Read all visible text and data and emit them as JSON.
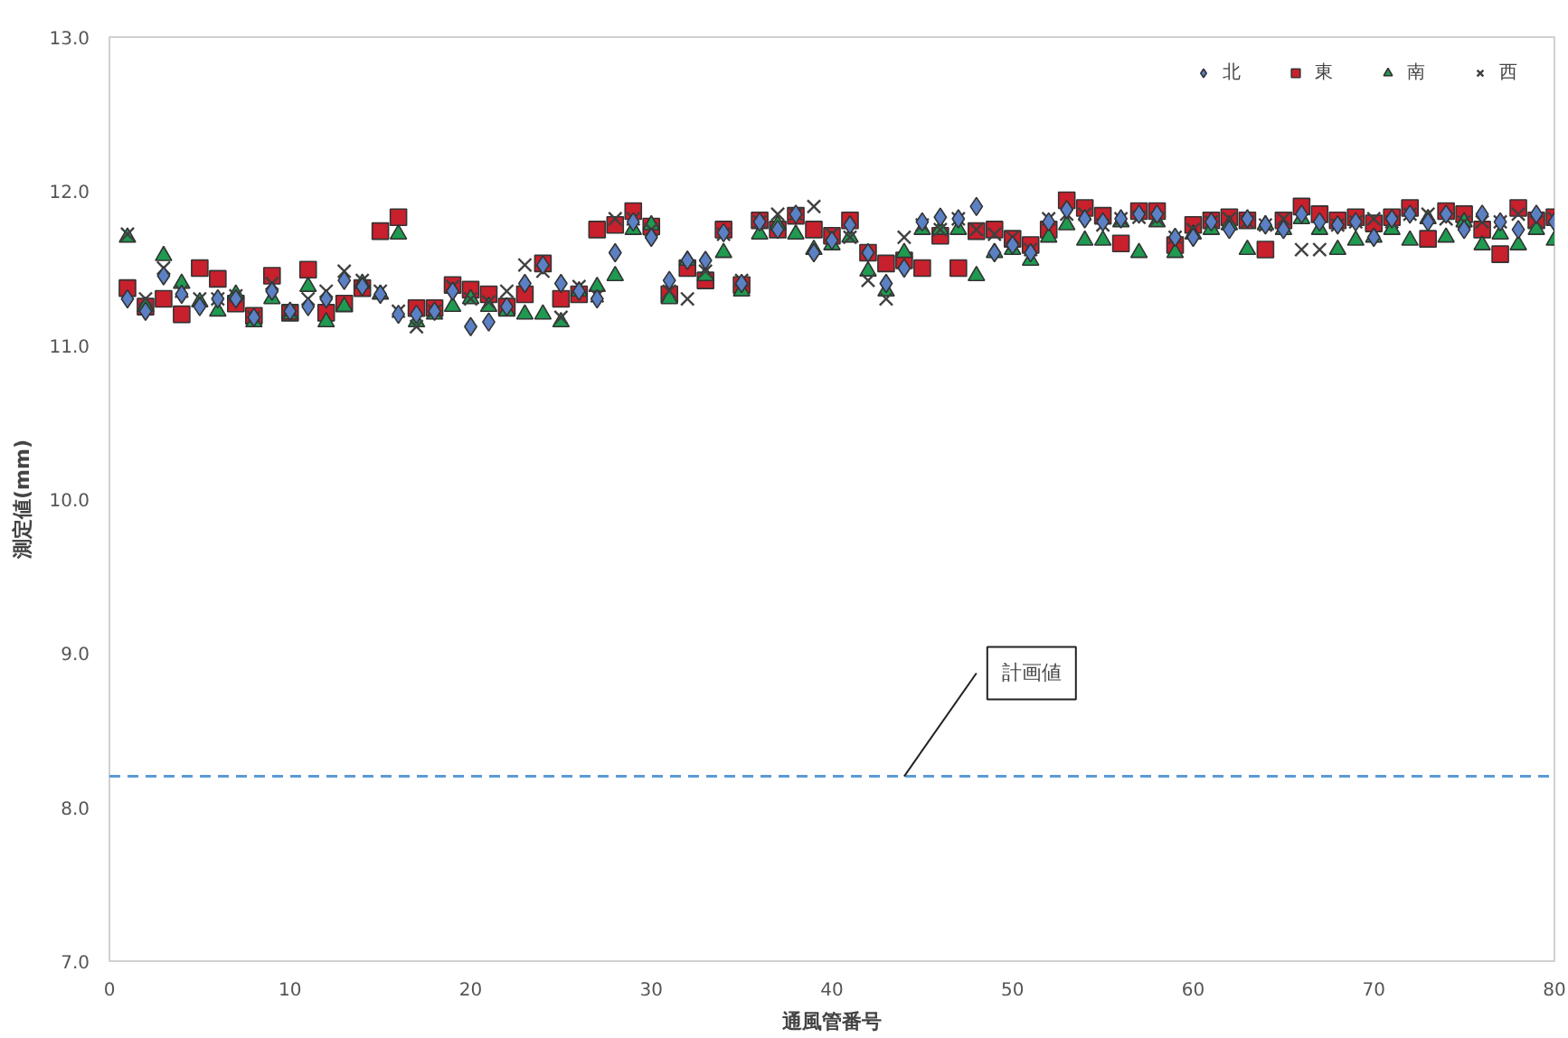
{
  "chart_data": {
    "type": "scatter",
    "xlabel": "通風管番号",
    "ylabel": "測定値(mm)",
    "x": [
      1,
      2,
      3,
      4,
      5,
      6,
      7,
      8,
      9,
      10,
      11,
      12,
      13,
      14,
      15,
      16,
      17,
      18,
      19,
      20,
      21,
      22,
      23,
      24,
      25,
      26,
      27,
      28,
      29,
      30,
      31,
      32,
      33,
      34,
      35,
      36,
      37,
      38,
      39,
      40,
      41,
      42,
      43,
      44,
      45,
      46,
      47,
      48,
      49,
      50,
      51,
      52,
      53,
      54,
      55,
      56,
      57,
      58,
      59,
      60,
      61,
      62,
      63,
      64,
      65,
      66,
      67,
      68,
      69,
      70,
      71,
      72,
      73,
      74,
      75,
      76,
      77,
      78,
      79,
      80
    ],
    "xlim": [
      0,
      80
    ],
    "xticks": [
      0,
      10,
      20,
      30,
      40,
      50,
      60,
      70,
      80
    ],
    "ylim": [
      7,
      13
    ],
    "yticks": [
      {
        "value": 7,
        "label": "7.0"
      },
      {
        "value": 8,
        "label": "8.0"
      },
      {
        "value": 9,
        "label": "9.0"
      },
      {
        "value": 10,
        "label": "10.0"
      },
      {
        "value": 11,
        "label": "11.0"
      },
      {
        "value": 12,
        "label": "12.0"
      },
      {
        "value": 13,
        "label": "13.0"
      }
    ],
    "grid": false,
    "legend": "top right",
    "series": [
      {
        "name": "北",
        "color": "#5b80c4",
        "marker": "diamond",
        "values": [
          11.3,
          11.22,
          11.45,
          11.33,
          11.25,
          11.3,
          11.3,
          11.18,
          11.35,
          11.22,
          11.25,
          11.3,
          11.42,
          11.38,
          11.33,
          11.2,
          11.2,
          11.22,
          11.35,
          11.12,
          11.15,
          11.25,
          11.4,
          11.52,
          11.4,
          11.35,
          11.3,
          11.6,
          11.8,
          11.7,
          11.42,
          11.55,
          11.55,
          11.73,
          11.4,
          11.8,
          11.75,
          11.85,
          11.6,
          11.68,
          11.78,
          11.6,
          11.4,
          11.5,
          11.8,
          11.83,
          11.82,
          11.9,
          11.6,
          11.65,
          11.6,
          11.8,
          11.88,
          11.82,
          11.8,
          11.82,
          11.85,
          11.85,
          11.7,
          11.7,
          11.8,
          11.75,
          11.82,
          11.78,
          11.75,
          11.85,
          11.8,
          11.78,
          11.8,
          11.7,
          11.82,
          11.85,
          11.8,
          11.85,
          11.75,
          11.85,
          11.8,
          11.75,
          11.85,
          11.8
        ]
      },
      {
        "name": "東",
        "color": "#c8202c",
        "marker": "square",
        "values": [
          11.37,
          11.25,
          11.3,
          11.2,
          11.5,
          11.43,
          11.27,
          11.19,
          11.45,
          11.21,
          11.49,
          11.21,
          11.27,
          11.37,
          11.74,
          11.83,
          11.24,
          11.24,
          11.39,
          11.36,
          11.33,
          11.25,
          11.33,
          11.53,
          11.3,
          11.33,
          11.75,
          11.78,
          11.87,
          11.77,
          11.33,
          11.5,
          11.42,
          11.75,
          11.39,
          11.81,
          11.75,
          11.84,
          11.75,
          11.71,
          11.81,
          11.6,
          11.53,
          11.55,
          11.5,
          11.71,
          11.5,
          11.74,
          11.75,
          11.69,
          11.65,
          11.75,
          11.94,
          11.89,
          11.84,
          11.66,
          11.87,
          11.87,
          11.65,
          11.78,
          11.81,
          11.83,
          11.81,
          11.62,
          11.81,
          11.9,
          11.85,
          11.81,
          11.83,
          11.79,
          11.83,
          11.89,
          11.69,
          11.87,
          11.85,
          11.75,
          11.59,
          11.89,
          11.81,
          11.83
        ]
      },
      {
        "name": "南",
        "color": "#1f9a50",
        "marker": "triangle",
        "values": [
          11.7,
          11.25,
          11.58,
          11.4,
          11.28,
          11.22,
          11.33,
          11.15,
          11.3,
          11.2,
          11.38,
          11.15,
          11.25,
          11.4,
          11.33,
          11.72,
          11.15,
          11.2,
          11.25,
          11.3,
          11.25,
          11.22,
          11.2,
          11.2,
          11.15,
          11.35,
          11.38,
          11.45,
          11.75,
          11.78,
          11.3,
          11.55,
          11.45,
          11.6,
          11.35,
          11.72,
          11.78,
          11.72,
          11.62,
          11.65,
          11.7,
          11.48,
          11.35,
          11.6,
          11.75,
          11.75,
          11.75,
          11.45,
          11.6,
          11.62,
          11.55,
          11.7,
          11.78,
          11.68,
          11.68,
          11.8,
          11.6,
          11.8,
          11.6,
          11.72,
          11.75,
          11.78,
          11.62,
          11.78,
          11.75,
          11.82,
          11.75,
          11.62,
          11.68,
          11.7,
          11.75,
          11.68,
          11.82,
          11.7,
          11.8,
          11.65,
          11.72,
          11.65,
          11.75,
          11.68
        ]
      },
      {
        "name": "西",
        "color": "#404040",
        "marker": "cross",
        "values": [
          11.72,
          11.3,
          11.5,
          11.35,
          11.3,
          11.3,
          11.32,
          11.18,
          11.4,
          11.22,
          11.3,
          11.35,
          11.48,
          11.42,
          11.35,
          11.22,
          11.12,
          11.22,
          11.38,
          11.3,
          11.28,
          11.35,
          11.52,
          11.48,
          11.18,
          11.38,
          11.32,
          11.82,
          11.82,
          11.75,
          11.35,
          11.3,
          11.48,
          11.72,
          11.42,
          11.8,
          11.85,
          11.85,
          11.9,
          11.72,
          11.7,
          11.42,
          11.3,
          11.7,
          11.78,
          11.75,
          11.82,
          11.75,
          11.72,
          11.7,
          11.62,
          11.82,
          11.85,
          11.85,
          11.78,
          11.82,
          11.83,
          11.82,
          11.7,
          11.75,
          11.8,
          11.82,
          11.8,
          11.78,
          11.82,
          11.62,
          11.62,
          11.78,
          11.8,
          11.82,
          11.8,
          11.85,
          11.85,
          11.82,
          11.8,
          11.8,
          11.8,
          11.85,
          11.8,
          11.82
        ]
      }
    ],
    "ref_lines": [
      {
        "axis": "y",
        "value": 8.2,
        "color": "#5b9bd5",
        "line_style": "dashed"
      }
    ],
    "annotations": [
      {
        "text": "計画値",
        "x": 44,
        "y": 8.2
      }
    ]
  }
}
